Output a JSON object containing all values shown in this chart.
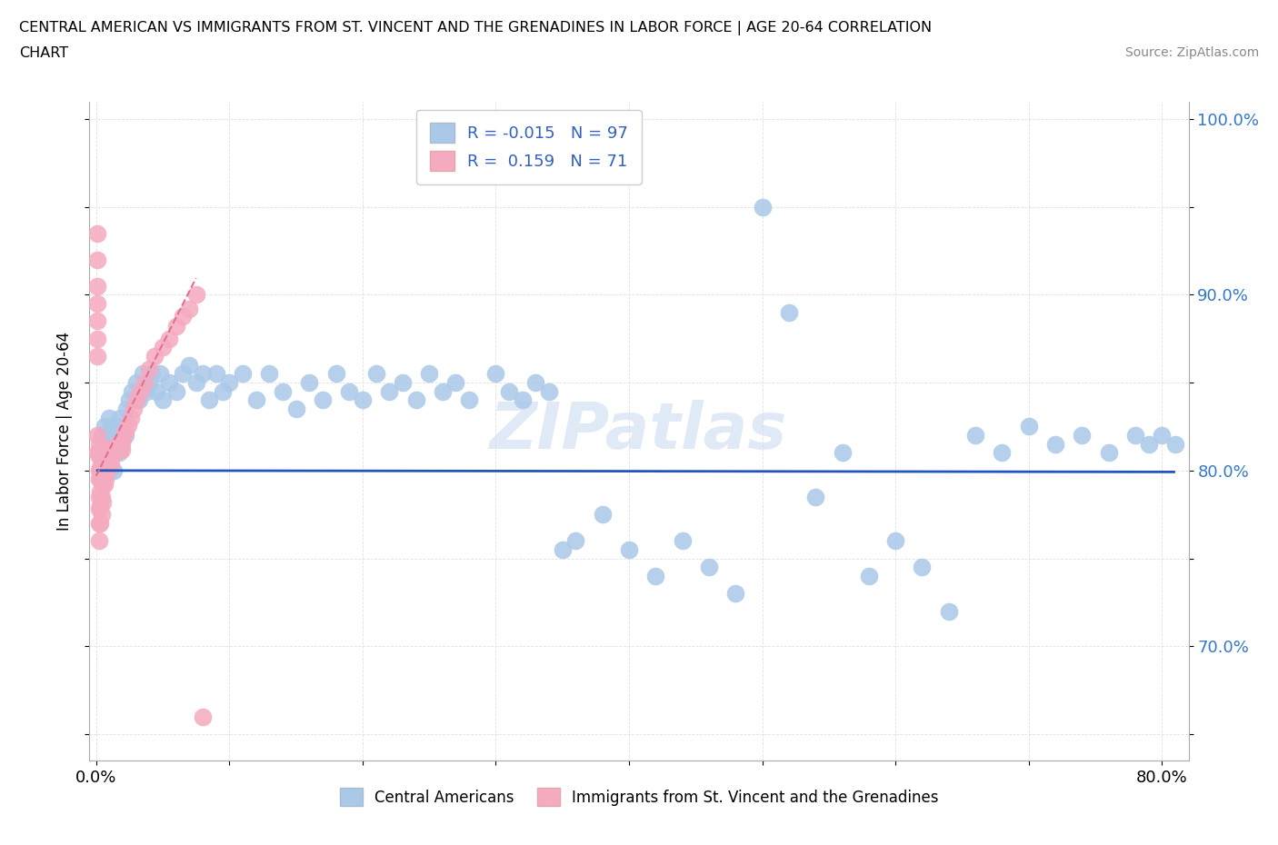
{
  "title_line1": "CENTRAL AMERICAN VS IMMIGRANTS FROM ST. VINCENT AND THE GRENADINES IN LABOR FORCE | AGE 20-64 CORRELATION",
  "title_line2": "CHART",
  "source": "Source: ZipAtlas.com",
  "ylabel": "In Labor Force | Age 20-64",
  "xlim": [
    -0.005,
    0.82
  ],
  "ylim": [
    0.635,
    1.01
  ],
  "blue_R": -0.015,
  "blue_N": 97,
  "pink_R": 0.159,
  "pink_N": 71,
  "blue_color": "#aac8e8",
  "pink_color": "#f5aabf",
  "blue_line_color": "#2255bb",
  "pink_line_color": "#e07090",
  "legend_label_blue": "Central Americans",
  "legend_label_pink": "Immigrants from St. Vincent and the Grenadines",
  "blue_x": [
    0.002,
    0.003,
    0.004,
    0.005,
    0.005,
    0.006,
    0.006,
    0.007,
    0.007,
    0.008,
    0.009,
    0.01,
    0.01,
    0.011,
    0.011,
    0.012,
    0.013,
    0.013,
    0.014,
    0.015,
    0.016,
    0.017,
    0.018,
    0.019,
    0.02,
    0.022,
    0.023,
    0.025,
    0.027,
    0.03,
    0.032,
    0.035,
    0.038,
    0.04,
    0.042,
    0.045,
    0.048,
    0.05,
    0.055,
    0.06,
    0.065,
    0.07,
    0.075,
    0.08,
    0.085,
    0.09,
    0.095,
    0.1,
    0.11,
    0.12,
    0.13,
    0.14,
    0.15,
    0.16,
    0.17,
    0.18,
    0.19,
    0.2,
    0.21,
    0.22,
    0.23,
    0.24,
    0.25,
    0.26,
    0.27,
    0.28,
    0.3,
    0.31,
    0.32,
    0.33,
    0.34,
    0.35,
    0.36,
    0.38,
    0.4,
    0.42,
    0.44,
    0.46,
    0.48,
    0.5,
    0.52,
    0.54,
    0.56,
    0.58,
    0.6,
    0.62,
    0.64,
    0.66,
    0.68,
    0.7,
    0.72,
    0.74,
    0.76,
    0.78,
    0.79,
    0.8,
    0.81
  ],
  "blue_y": [
    0.81,
    0.8,
    0.82,
    0.795,
    0.815,
    0.805,
    0.825,
    0.8,
    0.815,
    0.81,
    0.82,
    0.8,
    0.83,
    0.81,
    0.825,
    0.815,
    0.82,
    0.8,
    0.825,
    0.815,
    0.82,
    0.81,
    0.83,
    0.815,
    0.825,
    0.82,
    0.835,
    0.84,
    0.845,
    0.85,
    0.84,
    0.855,
    0.845,
    0.85,
    0.855,
    0.845,
    0.855,
    0.84,
    0.85,
    0.845,
    0.855,
    0.86,
    0.85,
    0.855,
    0.84,
    0.855,
    0.845,
    0.85,
    0.855,
    0.84,
    0.855,
    0.845,
    0.835,
    0.85,
    0.84,
    0.855,
    0.845,
    0.84,
    0.855,
    0.845,
    0.85,
    0.84,
    0.855,
    0.845,
    0.85,
    0.84,
    0.855,
    0.845,
    0.84,
    0.85,
    0.845,
    0.755,
    0.76,
    0.775,
    0.755,
    0.74,
    0.76,
    0.745,
    0.73,
    0.95,
    0.89,
    0.785,
    0.81,
    0.74,
    0.76,
    0.745,
    0.72,
    0.82,
    0.81,
    0.825,
    0.815,
    0.82,
    0.81,
    0.82,
    0.815,
    0.82,
    0.815
  ],
  "pink_x": [
    0.001,
    0.001,
    0.001,
    0.001,
    0.001,
    0.001,
    0.001,
    0.001,
    0.001,
    0.002,
    0.002,
    0.002,
    0.002,
    0.002,
    0.002,
    0.002,
    0.002,
    0.003,
    0.003,
    0.003,
    0.003,
    0.003,
    0.003,
    0.004,
    0.004,
    0.004,
    0.004,
    0.004,
    0.005,
    0.005,
    0.005,
    0.005,
    0.006,
    0.006,
    0.006,
    0.007,
    0.007,
    0.007,
    0.008,
    0.008,
    0.009,
    0.009,
    0.01,
    0.01,
    0.011,
    0.011,
    0.012,
    0.013,
    0.014,
    0.015,
    0.016,
    0.017,
    0.018,
    0.019,
    0.02,
    0.022,
    0.024,
    0.026,
    0.028,
    0.03,
    0.033,
    0.036,
    0.04,
    0.044,
    0.05,
    0.055,
    0.06,
    0.065,
    0.07,
    0.075,
    0.08
  ],
  "pink_y": [
    0.935,
    0.92,
    0.905,
    0.895,
    0.885,
    0.875,
    0.865,
    0.82,
    0.81,
    0.815,
    0.808,
    0.8,
    0.795,
    0.785,
    0.778,
    0.77,
    0.76,
    0.81,
    0.802,
    0.795,
    0.788,
    0.78,
    0.77,
    0.81,
    0.802,
    0.795,
    0.785,
    0.775,
    0.81,
    0.8,
    0.792,
    0.782,
    0.808,
    0.8,
    0.792,
    0.812,
    0.803,
    0.795,
    0.808,
    0.8,
    0.812,
    0.804,
    0.81,
    0.802,
    0.812,
    0.804,
    0.81,
    0.812,
    0.81,
    0.812,
    0.815,
    0.812,
    0.815,
    0.812,
    0.818,
    0.822,
    0.826,
    0.83,
    0.835,
    0.84,
    0.845,
    0.85,
    0.858,
    0.865,
    0.87,
    0.875,
    0.882,
    0.888,
    0.892,
    0.9,
    0.66
  ]
}
